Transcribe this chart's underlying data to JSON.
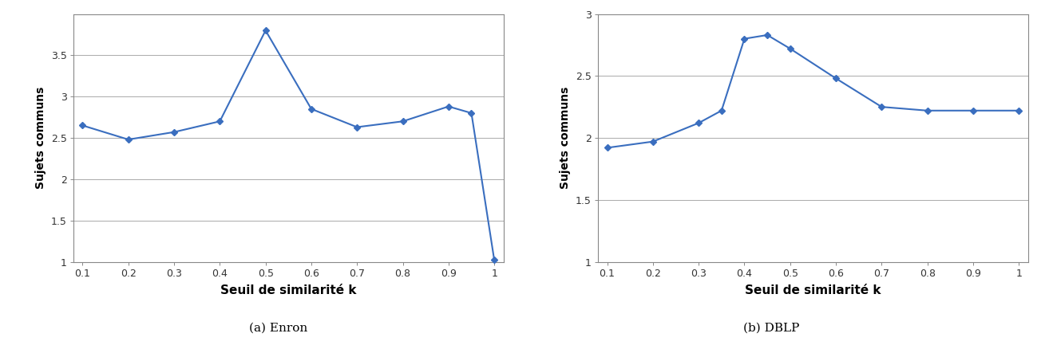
{
  "enron": {
    "x": [
      0.1,
      0.2,
      0.3,
      0.4,
      0.5,
      0.6,
      0.7,
      0.8,
      0.9,
      0.95,
      1.0
    ],
    "y": [
      2.65,
      2.48,
      2.57,
      2.7,
      3.8,
      2.85,
      2.63,
      2.7,
      2.88,
      2.8,
      1.02
    ],
    "xlabel": "Seuil de similarité k",
    "ylabel": "Sujets communs",
    "caption": "(a) Enron",
    "ylim": [
      1.0,
      4.0
    ],
    "yticks": [
      1.0,
      1.5,
      2.0,
      2.5,
      3.0,
      3.5
    ],
    "ytick_labels": [
      "1",
      "1.5",
      "2",
      "2.5",
      "3",
      "3.5"
    ],
    "xticks": [
      0.1,
      0.2,
      0.3,
      0.4,
      0.5,
      0.6,
      0.7,
      0.8,
      0.9,
      1.0
    ],
    "xtick_labels": [
      "0.1",
      "0.2",
      "0.3",
      "0.4",
      "0.5",
      "0.6",
      "0.7",
      "0.8",
      "0.9",
      "1"
    ]
  },
  "dblp": {
    "x": [
      0.1,
      0.2,
      0.3,
      0.35,
      0.4,
      0.45,
      0.5,
      0.6,
      0.7,
      0.8,
      0.9,
      1.0
    ],
    "y": [
      1.92,
      1.97,
      2.12,
      2.22,
      2.8,
      2.83,
      2.72,
      2.48,
      2.25,
      2.22,
      2.22,
      2.22
    ],
    "xlabel": "Seuil de similarité k",
    "ylabel": "Sujets communs",
    "caption": "(b) DBLP",
    "ylim": [
      1.0,
      3.0
    ],
    "yticks": [
      1.0,
      1.5,
      2.0,
      2.5,
      3.0
    ],
    "ytick_labels": [
      "1",
      "1.5",
      "2",
      "2.5",
      "3"
    ],
    "xticks": [
      0.1,
      0.2,
      0.3,
      0.4,
      0.5,
      0.6,
      0.7,
      0.8,
      0.9,
      1.0
    ],
    "xtick_labels": [
      "0.1",
      "0.2",
      "0.3",
      "0.4",
      "0.5",
      "0.6",
      "0.7",
      "0.8",
      "0.9",
      "1"
    ]
  },
  "line_color": "#3A6EBF",
  "marker": "D",
  "marker_size": 4,
  "line_width": 1.5,
  "grid_color": "#AAAAAA",
  "bg_color": "#FFFFFF",
  "plot_bg_color": "#FFFFFF",
  "border_color": "#888888",
  "xlabel_fontsize": 11,
  "ylabel_fontsize": 10,
  "tick_fontsize": 9,
  "caption_fontsize": 11
}
